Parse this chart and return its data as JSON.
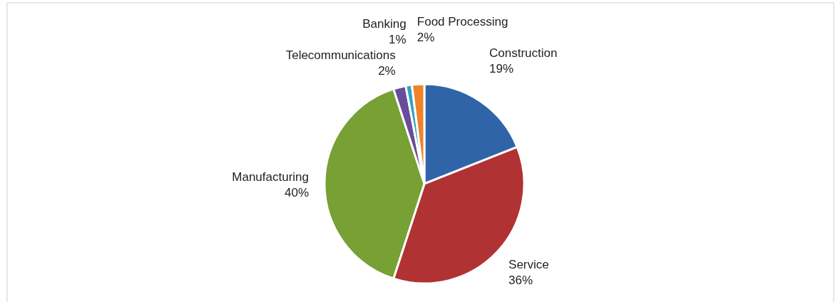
{
  "chart_data": {
    "type": "pie",
    "categories": [
      "Construction",
      "Service",
      "Manufacturing",
      "Telecommunications",
      "Banking",
      "Food Processing"
    ],
    "values": [
      19,
      36,
      40,
      2,
      1,
      2
    ],
    "colors": [
      "#2f64a8",
      "#b03232",
      "#77a035",
      "#6b4b9b",
      "#2ea3c4",
      "#f0832a"
    ],
    "value_labels": [
      "19%",
      "36%",
      "40%",
      "2%",
      "1%",
      "2%"
    ]
  }
}
